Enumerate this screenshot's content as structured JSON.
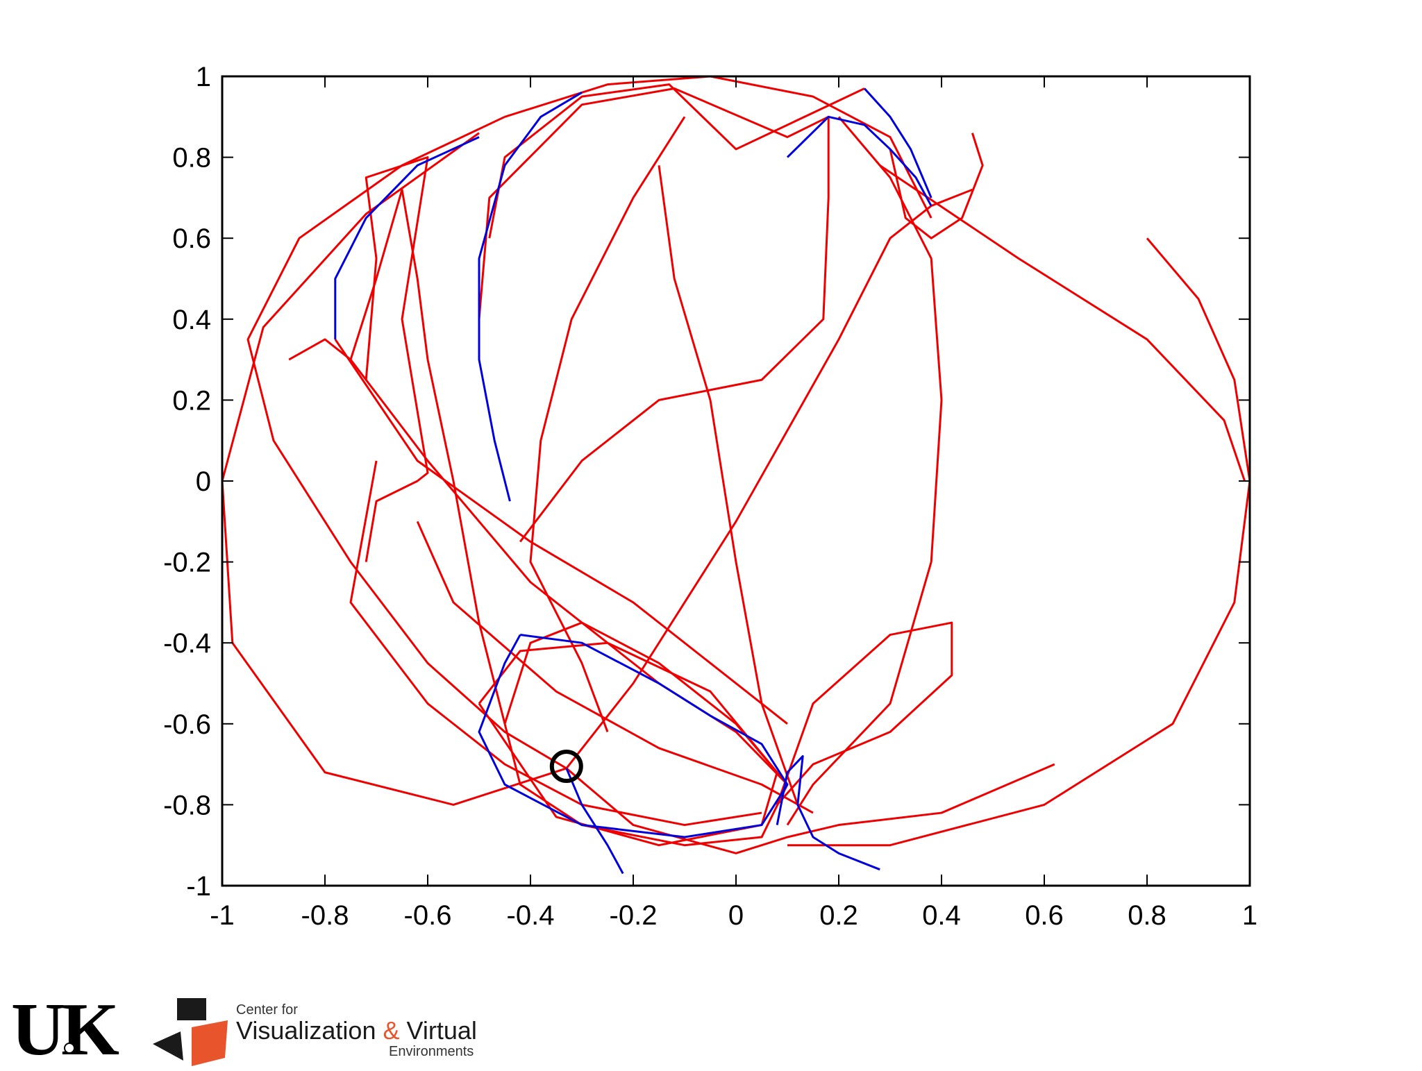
{
  "chart_data": {
    "type": "line",
    "title": "",
    "xlabel": "",
    "ylabel": "",
    "xlim": [
      -1,
      1
    ],
    "ylim": [
      -1,
      1
    ],
    "xticks": [
      "-1",
      "-0.8",
      "-0.6",
      "-0.4",
      "-0.2",
      "0",
      "0.2",
      "0.4",
      "0.6",
      "0.8",
      "1"
    ],
    "xtick_values": [
      -1,
      -0.8,
      -0.6,
      -0.4,
      -0.2,
      0,
      0.2,
      0.4,
      0.6,
      0.8,
      1
    ],
    "yticks": [
      "1",
      "0.8",
      "0.6",
      "0.4",
      "0.2",
      "0",
      "-0.2",
      "-0.4",
      "-0.6",
      "-0.8",
      "-1"
    ],
    "ytick_values": [
      1,
      0.8,
      0.6,
      0.4,
      0.2,
      0,
      -0.2,
      -0.4,
      -0.6,
      -0.8,
      -1
    ],
    "colors": {
      "red": "#ee0000",
      "blue": "#0000dd",
      "marker": "#000000"
    },
    "marker_point": {
      "x": -0.33,
      "y": -0.705
    },
    "series": [
      {
        "color": "red",
        "points": [
          [
            -0.33,
            -0.71
          ],
          [
            -0.45,
            -0.62
          ],
          [
            -0.6,
            -0.45
          ],
          [
            -0.75,
            -0.2
          ],
          [
            -0.9,
            0.1
          ],
          [
            -0.95,
            0.35
          ],
          [
            -0.85,
            0.6
          ],
          [
            -0.65,
            0.78
          ],
          [
            -0.45,
            0.9
          ]
        ]
      },
      {
        "color": "red",
        "points": [
          [
            -0.33,
            -0.71
          ],
          [
            -0.55,
            -0.8
          ],
          [
            -0.8,
            -0.72
          ],
          [
            -0.98,
            -0.4
          ],
          [
            -1.0,
            0.0
          ],
          [
            -0.92,
            0.38
          ],
          [
            -0.72,
            0.66
          ],
          [
            -0.5,
            0.86
          ]
        ]
      },
      {
        "color": "red",
        "points": [
          [
            -0.45,
            0.9
          ],
          [
            -0.25,
            0.98
          ],
          [
            -0.05,
            1.0
          ],
          [
            0.15,
            0.95
          ],
          [
            0.3,
            0.85
          ],
          [
            0.38,
            0.65
          ]
        ]
      },
      {
        "color": "red",
        "points": [
          [
            -0.48,
            0.6
          ],
          [
            -0.45,
            0.8
          ],
          [
            -0.3,
            0.95
          ],
          [
            -0.13,
            0.98
          ],
          [
            0.0,
            0.82
          ],
          [
            0.1,
            0.88
          ],
          [
            0.2,
            0.94
          ],
          [
            0.25,
            0.97
          ]
        ]
      },
      {
        "color": "red",
        "points": [
          [
            -0.5,
            0.4
          ],
          [
            -0.48,
            0.7
          ],
          [
            -0.3,
            0.93
          ],
          [
            -0.12,
            0.97
          ],
          [
            0.1,
            0.85
          ],
          [
            0.18,
            0.9
          ],
          [
            0.18,
            0.7
          ],
          [
            0.17,
            0.4
          ],
          [
            0.05,
            0.25
          ],
          [
            -0.15,
            0.2
          ],
          [
            -0.3,
            0.05
          ],
          [
            -0.42,
            -0.15
          ]
        ]
      },
      {
        "color": "red",
        "points": [
          [
            0.2,
            0.9
          ],
          [
            0.3,
            0.75
          ],
          [
            0.38,
            0.55
          ],
          [
            0.4,
            0.2
          ],
          [
            0.38,
            -0.2
          ],
          [
            0.3,
            -0.55
          ],
          [
            0.15,
            -0.75
          ],
          [
            0.1,
            -0.85
          ]
        ]
      },
      {
        "color": "red",
        "points": [
          [
            0.8,
            0.6
          ],
          [
            0.9,
            0.45
          ],
          [
            0.97,
            0.25
          ],
          [
            1.0,
            0.0
          ],
          [
            0.97,
            -0.3
          ],
          [
            0.85,
            -0.6
          ],
          [
            0.6,
            -0.8
          ],
          [
            0.3,
            -0.9
          ],
          [
            0.1,
            -0.9
          ]
        ]
      },
      {
        "color": "red",
        "points": [
          [
            0.28,
            0.78
          ],
          [
            0.55,
            0.55
          ],
          [
            0.8,
            0.35
          ],
          [
            0.95,
            0.15
          ],
          [
            0.99,
            0.0
          ]
        ]
      },
      {
        "color": "red",
        "points": [
          [
            -0.33,
            -0.71
          ],
          [
            -0.2,
            -0.5
          ],
          [
            0.0,
            -0.1
          ],
          [
            0.2,
            0.35
          ],
          [
            0.3,
            0.6
          ],
          [
            0.38,
            0.68
          ],
          [
            0.46,
            0.72
          ]
        ]
      },
      {
        "color": "red",
        "points": [
          [
            -0.33,
            -0.71
          ],
          [
            -0.2,
            -0.85
          ],
          [
            0.0,
            -0.92
          ],
          [
            0.1,
            -0.88
          ],
          [
            0.2,
            -0.85
          ],
          [
            0.4,
            -0.82
          ],
          [
            0.62,
            -0.7
          ]
        ]
      },
      {
        "color": "red",
        "points": [
          [
            0.08,
            -0.8
          ],
          [
            0.15,
            -0.55
          ],
          [
            0.3,
            -0.38
          ],
          [
            0.42,
            -0.35
          ],
          [
            0.42,
            -0.48
          ],
          [
            0.3,
            -0.62
          ],
          [
            0.15,
            -0.7
          ],
          [
            0.08,
            -0.8
          ]
        ]
      },
      {
        "color": "red",
        "points": [
          [
            -0.45,
            -0.6
          ],
          [
            -0.4,
            -0.4
          ],
          [
            -0.3,
            -0.35
          ],
          [
            -0.15,
            -0.45
          ],
          [
            0.0,
            -0.6
          ],
          [
            0.1,
            -0.75
          ],
          [
            0.05,
            -0.88
          ],
          [
            -0.1,
            -0.9
          ],
          [
            -0.3,
            -0.85
          ],
          [
            -0.42,
            -0.75
          ],
          [
            -0.45,
            -0.6
          ]
        ]
      },
      {
        "color": "red",
        "points": [
          [
            -0.5,
            -0.55
          ],
          [
            -0.42,
            -0.42
          ],
          [
            -0.25,
            -0.4
          ],
          [
            -0.05,
            -0.52
          ],
          [
            0.08,
            -0.72
          ],
          [
            0.05,
            -0.85
          ],
          [
            -0.15,
            -0.9
          ],
          [
            -0.35,
            -0.83
          ],
          [
            -0.5,
            -0.55
          ]
        ]
      },
      {
        "color": "red",
        "points": [
          [
            -0.7,
            0.05
          ],
          [
            -0.75,
            -0.3
          ],
          [
            -0.6,
            -0.55
          ],
          [
            -0.45,
            -0.7
          ],
          [
            -0.3,
            -0.8
          ],
          [
            -0.1,
            -0.85
          ],
          [
            0.05,
            -0.82
          ]
        ]
      },
      {
        "color": "red",
        "points": [
          [
            -0.87,
            0.3
          ],
          [
            -0.8,
            0.35
          ],
          [
            -0.75,
            0.3
          ],
          [
            -0.6,
            0.05
          ],
          [
            -0.4,
            -0.25
          ],
          [
            -0.15,
            -0.5
          ],
          [
            0.0,
            -0.62
          ],
          [
            0.1,
            -0.75
          ]
        ]
      },
      {
        "color": "red",
        "points": [
          [
            -0.75,
            0.3
          ],
          [
            -0.7,
            0.5
          ],
          [
            -0.65,
            0.72
          ],
          [
            -0.62,
            0.5
          ],
          [
            -0.6,
            0.3
          ],
          [
            -0.55,
            0.0
          ],
          [
            -0.5,
            -0.35
          ],
          [
            -0.45,
            -0.6
          ]
        ]
      },
      {
        "color": "red",
        "points": [
          [
            -0.72,
            0.25
          ],
          [
            -0.7,
            0.55
          ],
          [
            -0.72,
            0.75
          ],
          [
            -0.6,
            0.8
          ],
          [
            -0.65,
            0.4
          ],
          [
            -0.6,
            0.02
          ],
          [
            -0.62,
            0.0
          ],
          [
            -0.7,
            -0.05
          ],
          [
            -0.72,
            -0.2
          ]
        ]
      },
      {
        "color": "red",
        "points": [
          [
            -0.1,
            0.9
          ],
          [
            -0.2,
            0.7
          ],
          [
            -0.32,
            0.4
          ],
          [
            -0.38,
            0.1
          ],
          [
            -0.4,
            -0.2
          ],
          [
            -0.3,
            -0.45
          ],
          [
            -0.25,
            -0.62
          ]
        ]
      },
      {
        "color": "red",
        "points": [
          [
            -0.15,
            0.78
          ],
          [
            -0.12,
            0.5
          ],
          [
            -0.05,
            0.2
          ],
          [
            0.0,
            -0.2
          ],
          [
            0.05,
            -0.55
          ],
          [
            0.12,
            -0.8
          ]
        ]
      },
      {
        "color": "red",
        "points": [
          [
            0.3,
            0.82
          ],
          [
            0.33,
            0.65
          ],
          [
            0.38,
            0.6
          ],
          [
            0.44,
            0.65
          ],
          [
            0.48,
            0.78
          ],
          [
            0.46,
            0.86
          ]
        ]
      },
      {
        "color": "red",
        "points": [
          [
            -0.62,
            -0.1
          ],
          [
            -0.55,
            -0.3
          ],
          [
            -0.35,
            -0.52
          ],
          [
            -0.15,
            -0.66
          ],
          [
            0.05,
            -0.75
          ],
          [
            0.15,
            -0.82
          ]
        ]
      },
      {
        "color": "red",
        "points": [
          [
            -0.78,
            0.35
          ],
          [
            -0.62,
            0.05
          ],
          [
            -0.4,
            -0.15
          ],
          [
            -0.2,
            -0.3
          ],
          [
            -0.05,
            -0.45
          ],
          [
            0.1,
            -0.6
          ]
        ]
      },
      {
        "color": "blue",
        "points": [
          [
            -0.78,
            0.35
          ],
          [
            -0.78,
            0.5
          ],
          [
            -0.72,
            0.65
          ],
          [
            -0.62,
            0.78
          ],
          [
            -0.5,
            0.85
          ]
        ]
      },
      {
        "color": "blue",
        "points": [
          [
            -0.3,
            0.96
          ],
          [
            -0.38,
            0.9
          ],
          [
            -0.45,
            0.78
          ],
          [
            -0.5,
            0.55
          ],
          [
            -0.5,
            0.3
          ],
          [
            -0.47,
            0.1
          ],
          [
            -0.44,
            -0.05
          ]
        ]
      },
      {
        "color": "blue",
        "points": [
          [
            0.1,
            0.8
          ],
          [
            0.18,
            0.9
          ],
          [
            0.25,
            0.88
          ],
          [
            0.3,
            0.82
          ],
          [
            0.35,
            0.75
          ],
          [
            0.38,
            0.68
          ]
        ]
      },
      {
        "color": "blue",
        "points": [
          [
            0.25,
            0.97
          ],
          [
            0.3,
            0.9
          ],
          [
            0.34,
            0.82
          ],
          [
            0.38,
            0.7
          ]
        ]
      },
      {
        "color": "blue",
        "points": [
          [
            -0.42,
            -0.38
          ],
          [
            -0.3,
            -0.4
          ],
          [
            -0.15,
            -0.5
          ],
          [
            -0.05,
            -0.58
          ],
          [
            0.05,
            -0.65
          ],
          [
            0.1,
            -0.75
          ],
          [
            0.05,
            -0.85
          ],
          [
            -0.1,
            -0.88
          ],
          [
            -0.3,
            -0.85
          ],
          [
            -0.45,
            -0.75
          ],
          [
            -0.5,
            -0.62
          ],
          [
            -0.45,
            -0.45
          ],
          [
            -0.42,
            -0.38
          ]
        ]
      },
      {
        "color": "blue",
        "points": [
          [
            -0.33,
            -0.71
          ],
          [
            -0.3,
            -0.8
          ],
          [
            -0.25,
            -0.9
          ],
          [
            -0.22,
            -0.97
          ]
        ]
      },
      {
        "color": "blue",
        "points": [
          [
            0.08,
            -0.85
          ],
          [
            0.1,
            -0.72
          ],
          [
            0.13,
            -0.68
          ],
          [
            0.12,
            -0.8
          ],
          [
            0.15,
            -0.88
          ],
          [
            0.2,
            -0.92
          ],
          [
            0.28,
            -0.96
          ]
        ]
      }
    ]
  },
  "logos": {
    "uk": "UK",
    "cvve_line1": "Center for",
    "cvve_line2_a": "Visualization ",
    "cvve_amp": "&",
    "cvve_line2_b": " Virtual",
    "cvve_line3": "Environments"
  }
}
